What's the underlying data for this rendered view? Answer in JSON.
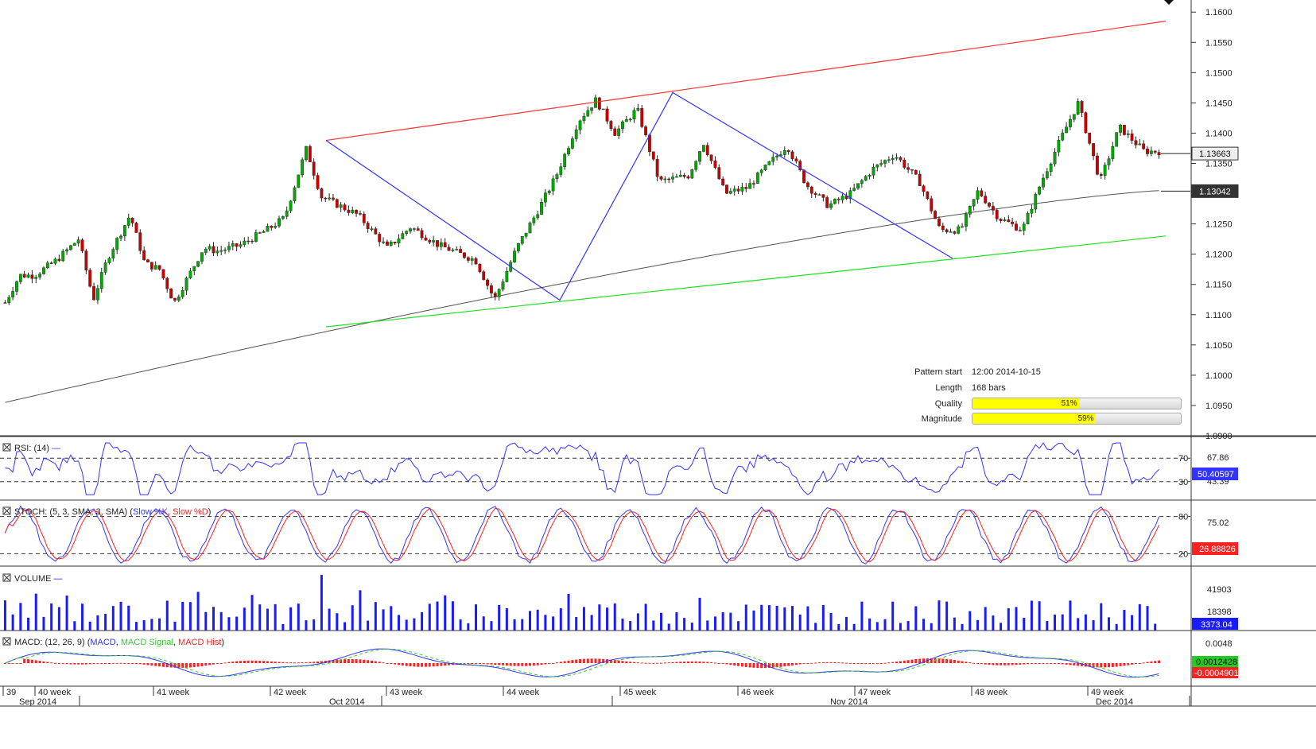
{
  "chart_data": {
    "type": "candlestick",
    "instrument_price_axis": {
      "ylim": [
        1.09,
        1.162
      ],
      "ticks": [
        "1.1600",
        "1.1550",
        "1.1500",
        "1.1450",
        "1.1400",
        "1.1350",
        "1.1300",
        "1.1250",
        "1.1200",
        "1.1150",
        "1.1100",
        "1.1050",
        "1.1000",
        "1.0950",
        "1.0900"
      ],
      "current_price": "1.13663",
      "moving_average_value": "1.13042"
    },
    "x_axis": {
      "weeks": [
        "39",
        "40 week",
        "41 week",
        "42 week",
        "43 week",
        "44 week",
        "45 week",
        "46 week",
        "47 week",
        "48 week",
        "49 week"
      ],
      "months": [
        "Sep 2014",
        "Oct 2014",
        "Nov 2014",
        "Dec 2014"
      ]
    },
    "pattern": {
      "start_label": "Pattern start",
      "start_value": "12:00 2014-10-15",
      "length_label": "Length",
      "length_value": "168 bars",
      "quality_label": "Quality",
      "quality_value": "51%",
      "quality_fraction": 0.51,
      "magnitude_label": "Magnitude",
      "magnitude_value": "59%",
      "magnitude_fraction": 0.59,
      "upper_line_color": "#ff3030",
      "lower_line_color": "#20e020",
      "zigzag_color": "#3333ff"
    },
    "rsi": {
      "title": "RSI: (14)",
      "levels": [
        "70",
        "30"
      ],
      "labels": [
        "67.86",
        "43.39"
      ],
      "current": "50.40597"
    },
    "stoch": {
      "title_prefix": "STOCH: (5, 3, SMA, 3, SMA) (",
      "k": "Slow %K",
      "sep": ", ",
      "d": "Slow %D",
      "title_suffix": ")",
      "levels": [
        "80",
        "20"
      ],
      "label": "75.02",
      "current": "26.88826"
    },
    "volume": {
      "title": "VOLUME",
      "labels": [
        "41903",
        "18398"
      ],
      "current": "3373.04"
    },
    "macd": {
      "title_prefix": "MACD: (12, 26, 9) (",
      "macd": "MACD",
      "sep1": ", ",
      "signal": "MACD Signal",
      "sep2": ", ",
      "hist": "MACD Hist",
      "title_suffix": ")",
      "label": "0.0048",
      "current_signal": "0.0012428",
      "current_macd": "-0.0004901"
    },
    "colors": {
      "bull": "#00aa00",
      "bear": "#cc0000",
      "rsi": "#3333ff",
      "stoch_k": "#3333ff",
      "stoch_d": "#ff2020",
      "volume": "#1a1aff",
      "macd": "#3333ff",
      "signal": "#33cc33",
      "hist": "#ff2020",
      "ma": "#555555"
    }
  }
}
